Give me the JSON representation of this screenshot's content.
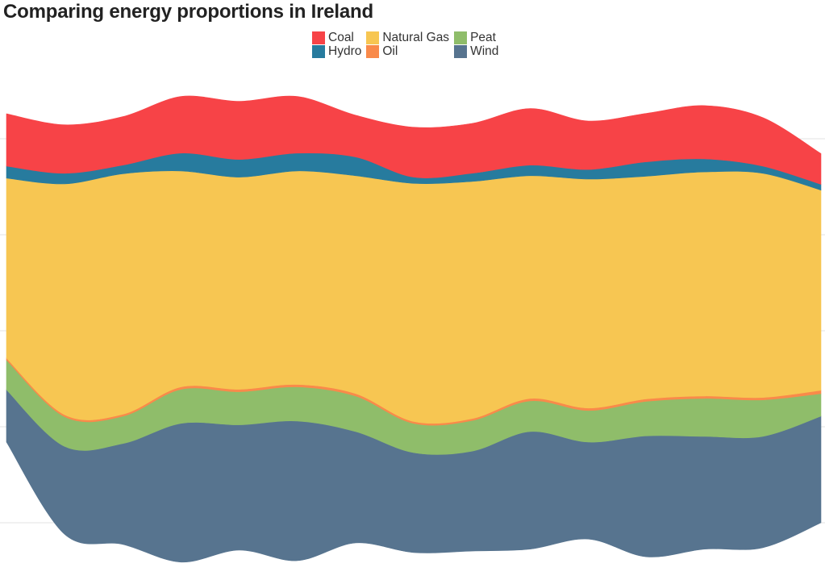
{
  "chart_data": {
    "type": "area",
    "subtype": "streamgraph",
    "title": "Comparing energy proportions in Ireland",
    "xlabel": "",
    "ylabel": "",
    "grid": true,
    "legend_position": "top",
    "x": [
      1,
      2,
      3,
      4,
      5,
      6,
      7,
      8,
      9,
      10,
      11,
      12,
      13,
      14,
      15
    ],
    "grid_step": 20,
    "grid_values": [
      -40,
      -20,
      0,
      20,
      40
    ],
    "baseline": [
      -23.2,
      -42.4,
      -44.5,
      -48.2,
      -45.7,
      -47.9,
      -44.2,
      -46.2,
      -45.9,
      -45.5,
      -43.4,
      -47.1,
      -45.5,
      -45.2,
      -40.0
    ],
    "series": [
      {
        "name": "Wind",
        "color": "#57748f",
        "values": [
          10.9,
          18.3,
          21.0,
          28.9,
          26.1,
          29.1,
          23.2,
          20.8,
          20.8,
          24.5,
          20.2,
          25.2,
          23.5,
          23.2,
          22.2
        ]
      },
      {
        "name": "Peat",
        "color": "#8fbd6a",
        "values": [
          6.2,
          6.2,
          5.7,
          7.1,
          6.9,
          7.1,
          7.4,
          6.1,
          6.4,
          6.4,
          6.6,
          7.2,
          7.9,
          7.6,
          4.7
        ]
      },
      {
        "name": "Oil",
        "color": "#f98a4a",
        "values": [
          0.4,
          0.4,
          0.4,
          0.5,
          0.5,
          0.5,
          0.5,
          0.4,
          0.4,
          0.5,
          0.5,
          0.5,
          0.5,
          0.5,
          0.7
        ]
      },
      {
        "name": "Natural Gas",
        "color": "#f7c652",
        "values": [
          37.5,
          48.1,
          50.1,
          45.0,
          44.2,
          44.5,
          45.4,
          49.6,
          49.4,
          46.4,
          47.7,
          46.4,
          46.7,
          46.7,
          41.7
        ]
      },
      {
        "name": "Hydro",
        "color": "#277b9e",
        "values": [
          2.5,
          2.2,
          1.8,
          3.7,
          3.7,
          3.7,
          3.9,
          1.3,
          1.7,
          2.2,
          2.0,
          3.0,
          2.7,
          1.5,
          1.2
        ]
      },
      {
        "name": "Coal",
        "color": "#f74347",
        "values": [
          10.9,
          10.1,
          10.1,
          11.8,
          12.1,
          11.8,
          8.7,
          10.4,
          10.4,
          11.8,
          10.1,
          10.1,
          11.1,
          10.1,
          6.4
        ]
      }
    ],
    "legend_order": [
      "Coal",
      "Hydro",
      "Natural Gas",
      "Oil",
      "Peat",
      "Wind"
    ]
  }
}
